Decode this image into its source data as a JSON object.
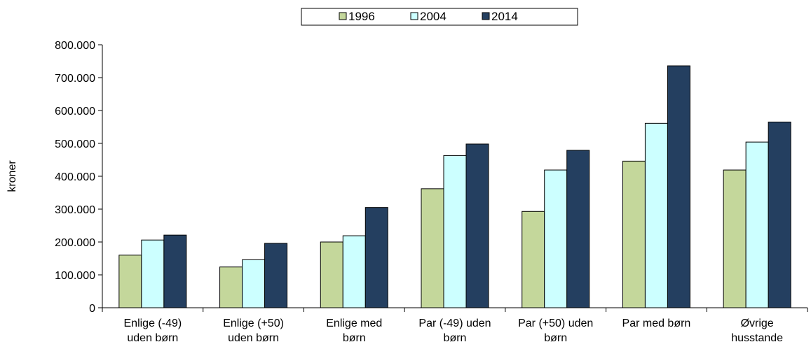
{
  "chart_data": {
    "type": "bar",
    "ylabel": "kroner",
    "ylim": [
      0,
      800000
    ],
    "yticks": [
      {
        "value": 0,
        "label": "0"
      },
      {
        "value": 100000,
        "label": "100.000"
      },
      {
        "value": 200000,
        "label": "200.000"
      },
      {
        "value": 300000,
        "label": "300.000"
      },
      {
        "value": 400000,
        "label": "400.000"
      },
      {
        "value": 500000,
        "label": "500.000"
      },
      {
        "value": 600000,
        "label": "600.000"
      },
      {
        "value": 700000,
        "label": "700.000"
      },
      {
        "value": 800000,
        "label": "800.000"
      }
    ],
    "categories": [
      [
        "Enlige (-49)",
        "uden børn"
      ],
      [
        "Enlige (+50)",
        "uden børn"
      ],
      [
        "Enlige med",
        "børn"
      ],
      [
        "Par (-49) uden",
        "børn"
      ],
      [
        "Par (+50) uden",
        "børn"
      ],
      [
        "Par med børn"
      ],
      [
        "Øvrige",
        "husstande"
      ]
    ],
    "series": [
      {
        "name": "1996",
        "color": "#c4d79b",
        "values": [
          160000,
          124000,
          200000,
          362000,
          293000,
          446000,
          419000
        ]
      },
      {
        "name": "2004",
        "color": "#ccffff",
        "values": [
          206000,
          146000,
          219000,
          463000,
          419000,
          561000,
          504000
        ]
      },
      {
        "name": "2014",
        "color": "#243f60",
        "values": [
          221000,
          196000,
          305000,
          498000,
          479000,
          736000,
          565000
        ]
      }
    ],
    "legend_position": "top-center",
    "grid": false
  }
}
